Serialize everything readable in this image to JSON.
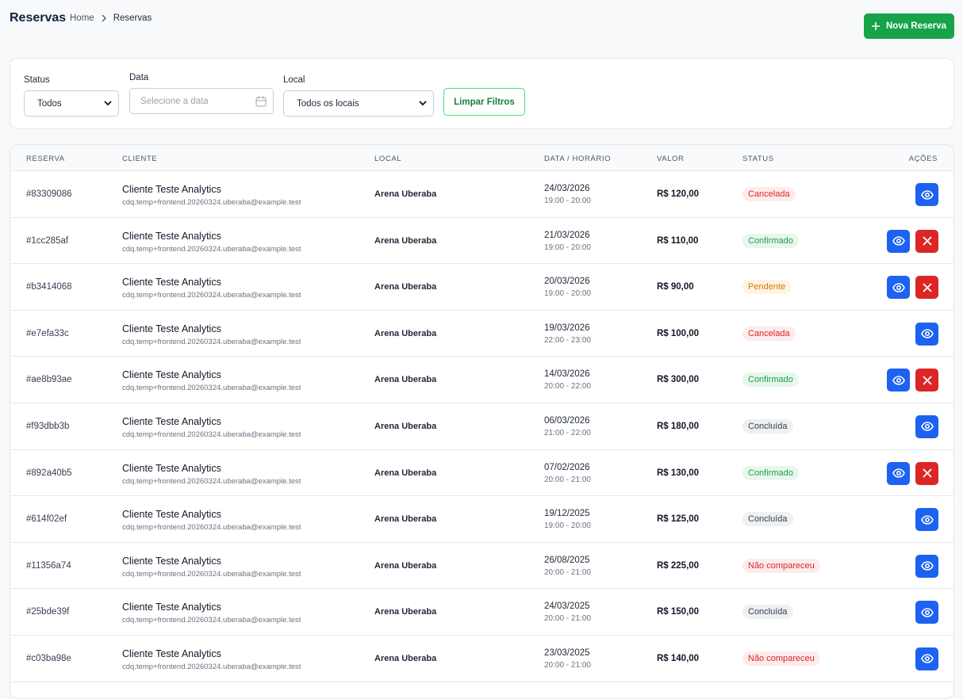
{
  "header": {
    "title": "Reservas",
    "breadcrumb": [
      "Home",
      "Reservas"
    ],
    "new_button": "Nova Reserva"
  },
  "filters": {
    "status": {
      "label": "Status",
      "value": "Todos"
    },
    "date": {
      "label": "Data",
      "placeholder": "Selecione a data"
    },
    "location": {
      "label": "Local",
      "value": "Todos os locais"
    },
    "clear_button": "Limpar Filtros"
  },
  "table": {
    "columns": [
      "RESERVA",
      "CLIENTE",
      "LOCAL",
      "DATA / HORÁRIO",
      "VALOR",
      "STATUS",
      "AÇÕES"
    ],
    "rows": [
      {
        "id": "#83309086",
        "client": "Cliente Teste Analytics",
        "email": "cdq.temp+frontend.20260324.uberaba@example.test",
        "location": "Arena Uberaba",
        "date": "24/03/2026",
        "time": "19:00 - 20:00",
        "value": "R$ 120,00",
        "status": "Cancelada",
        "tone": "red",
        "cancelable": false
      },
      {
        "id": "#1cc285af",
        "client": "Cliente Teste Analytics",
        "email": "cdq.temp+frontend.20260324.uberaba@example.test",
        "location": "Arena Uberaba",
        "date": "21/03/2026",
        "time": "19:00 - 20:00",
        "value": "R$ 110,00",
        "status": "Confirmado",
        "tone": "green",
        "cancelable": true
      },
      {
        "id": "#b3414068",
        "client": "Cliente Teste Analytics",
        "email": "cdq.temp+frontend.20260324.uberaba@example.test",
        "location": "Arena Uberaba",
        "date": "20/03/2026",
        "time": "19:00 - 20:00",
        "value": "R$ 90,00",
        "status": "Pendente",
        "tone": "orange",
        "cancelable": true
      },
      {
        "id": "#e7efa33c",
        "client": "Cliente Teste Analytics",
        "email": "cdq.temp+frontend.20260324.uberaba@example.test",
        "location": "Arena Uberaba",
        "date": "19/03/2026",
        "time": "22:00 - 23:00",
        "value": "R$ 100,00",
        "status": "Cancelada",
        "tone": "red",
        "cancelable": false
      },
      {
        "id": "#ae8b93ae",
        "client": "Cliente Teste Analytics",
        "email": "cdq.temp+frontend.20260324.uberaba@example.test",
        "location": "Arena Uberaba",
        "date": "14/03/2026",
        "time": "20:00 - 22:00",
        "value": "R$ 300,00",
        "status": "Confirmado",
        "tone": "green",
        "cancelable": true
      },
      {
        "id": "#f93dbb3b",
        "client": "Cliente Teste Analytics",
        "email": "cdq.temp+frontend.20260324.uberaba@example.test",
        "location": "Arena Uberaba",
        "date": "06/03/2026",
        "time": "21:00 - 22:00",
        "value": "R$ 180,00",
        "status": "Concluída",
        "tone": "gray",
        "cancelable": false
      },
      {
        "id": "#892a40b5",
        "client": "Cliente Teste Analytics",
        "email": "cdq.temp+frontend.20260324.uberaba@example.test",
        "location": "Arena Uberaba",
        "date": "07/02/2026",
        "time": "20:00 - 21:00",
        "value": "R$ 130,00",
        "status": "Confirmado",
        "tone": "green",
        "cancelable": true
      },
      {
        "id": "#614f02ef",
        "client": "Cliente Teste Analytics",
        "email": "cdq.temp+frontend.20260324.uberaba@example.test",
        "location": "Arena Uberaba",
        "date": "19/12/2025",
        "time": "19:00 - 20:00",
        "value": "R$ 125,00",
        "status": "Concluída",
        "tone": "gray",
        "cancelable": false
      },
      {
        "id": "#11356a74",
        "client": "Cliente Teste Analytics",
        "email": "cdq.temp+frontend.20260324.uberaba@example.test",
        "location": "Arena Uberaba",
        "date": "26/08/2025",
        "time": "20:00 - 21:00",
        "value": "R$ 225,00",
        "status": "Não compareceu",
        "tone": "red",
        "cancelable": false
      },
      {
        "id": "#25bde39f",
        "client": "Cliente Teste Analytics",
        "email": "cdq.temp+frontend.20260324.uberaba@example.test",
        "location": "Arena Uberaba",
        "date": "24/03/2025",
        "time": "20:00 - 21:00",
        "value": "R$ 150,00",
        "status": "Concluída",
        "tone": "gray",
        "cancelable": false
      },
      {
        "id": "#c03ba98e",
        "client": "Cliente Teste Analytics",
        "email": "cdq.temp+frontend.20260324.uberaba@example.test",
        "location": "Arena Uberaba",
        "date": "23/03/2025",
        "time": "20:00 - 21:00",
        "value": "R$ 140,00",
        "status": "Não compareceu",
        "tone": "red",
        "cancelable": false
      }
    ]
  }
}
